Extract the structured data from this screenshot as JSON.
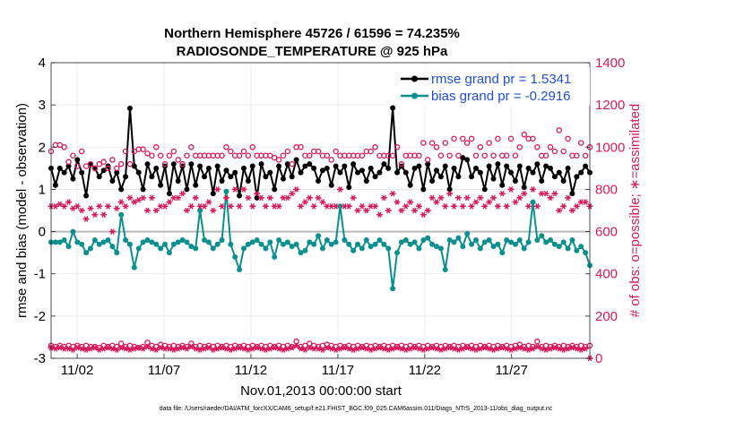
{
  "chart_data": {
    "type": "line",
    "title_line1": "Northern Hemisphere 45726 / 61596 = 74.235%",
    "title_line2": "RADIOSONDE_TEMPERATURE @ 925 hPa",
    "xlabel": "Nov.01,2013 00:00:00 start",
    "ylabel_left": "rmse and bias (model - observation)",
    "ylabel_right": "# of obs: o=possible; ∗=assimilated",
    "ylim_left": [
      -3,
      4
    ],
    "ylim_right": [
      0,
      1400
    ],
    "xlim": [
      0,
      31
    ],
    "x_ticks": [
      {
        "value": 1.5,
        "label": "11/02"
      },
      {
        "value": 6.5,
        "label": "11/07"
      },
      {
        "value": 11.5,
        "label": "11/12"
      },
      {
        "value": 16.5,
        "label": "11/17"
      },
      {
        "value": 21.5,
        "label": "11/22"
      },
      {
        "value": 26.5,
        "label": "11/27"
      }
    ],
    "left_ticks": [
      "4",
      "3",
      "2",
      "1",
      "0",
      "-1",
      "-2",
      "-3"
    ],
    "right_ticks": [
      "1400",
      "1200",
      "1000",
      "800",
      "600",
      "400",
      "200",
      "0"
    ],
    "legend": {
      "rmse_label": "rmse grand pr = 1.5341",
      "bias_label": "bias grand pr = -0.2916"
    },
    "footer": "data file: /Users/raeder/DAI/ATM_forcXX/CAM6_setup/f.e21.FHIST_BGC.f09_025.CAM6assim.011/Diags_NTrS_2013-11/obs_diag_output.nc",
    "colors": {
      "rmse": "#000000",
      "bias": "#0c8f8f",
      "counts": "#d6195a",
      "zero_line": "#b9b9b9",
      "title_text": "#000000",
      "legend_text": "#1f4fd6"
    },
    "n_bins": 124,
    "series": [
      {
        "name": "rmse",
        "axis": "left",
        "values": [
          1.5,
          1.1,
          1.5,
          1.4,
          1.55,
          1.25,
          1.7,
          1.4,
          0.85,
          1.6,
          1.5,
          1.3,
          1.45,
          1.55,
          1.2,
          1.4,
          1.0,
          1.3,
          2.92,
          1.55,
          1.4,
          1.0,
          1.6,
          1.3,
          1.5,
          1.1,
          1.55,
          0.9,
          1.6,
          1.2,
          1.55,
          1.0,
          1.6,
          1.1,
          1.55,
          1.3,
          1.5,
          0.9,
          1.55,
          1.2,
          1.45,
          1.3,
          1.4,
          0.85,
          1.5,
          1.2,
          1.55,
          0.8,
          1.6,
          1.3,
          1.4,
          1.0,
          1.55,
          1.25,
          1.6,
          1.3,
          1.7,
          1.4,
          1.55,
          1.6,
          1.5,
          1.2,
          1.45,
          1.5,
          1.1,
          1.55,
          1.4,
          1.55,
          1.05,
          1.6,
          1.4,
          1.45,
          1.2,
          1.5,
          1.3,
          1.4,
          1.6,
          1.5,
          2.93,
          1.4,
          1.55,
          1.4,
          1.1,
          1.5,
          1.55,
          1.0,
          1.6,
          1.2,
          1.45,
          1.3,
          1.55,
          1.0,
          1.5,
          1.3,
          1.75,
          1.7,
          1.3,
          1.5,
          1.4,
          1.0,
          1.55,
          1.25,
          1.6,
          1.1,
          1.55,
          1.4,
          1.2,
          1.55,
          1.05,
          1.5,
          1.4,
          1.6,
          1.2,
          1.55,
          1.5,
          1.3,
          1.4,
          1.2,
          1.5,
          0.9,
          1.3,
          1.4,
          1.55,
          1.4
        ]
      },
      {
        "name": "bias",
        "axis": "left",
        "values": [
          -0.25,
          -0.25,
          -0.25,
          -0.2,
          -0.35,
          0.0,
          -0.25,
          -0.3,
          -0.5,
          -0.4,
          -0.2,
          -0.3,
          -0.25,
          -0.2,
          -0.35,
          -0.5,
          0.4,
          -0.2,
          -0.3,
          -0.85,
          -0.4,
          -0.25,
          -0.2,
          -0.25,
          -0.3,
          -0.4,
          -0.3,
          -0.5,
          -0.3,
          -0.25,
          -0.2,
          -0.25,
          -0.35,
          -0.4,
          0.5,
          -0.2,
          -0.25,
          -0.4,
          -0.3,
          -0.2,
          0.95,
          -0.3,
          -0.6,
          -0.9,
          -0.4,
          -0.3,
          -0.25,
          -0.2,
          -0.3,
          -0.4,
          -0.25,
          -0.6,
          -0.2,
          -0.3,
          -0.25,
          -0.35,
          -0.3,
          -0.5,
          -0.45,
          -0.25,
          -0.3,
          -0.1,
          -0.4,
          -0.2,
          -0.3,
          -0.25,
          0.6,
          -0.2,
          -0.3,
          -0.45,
          -0.3,
          -0.4,
          -0.2,
          -0.35,
          -0.3,
          -0.2,
          -0.3,
          -0.4,
          -1.35,
          -0.5,
          -0.25,
          -0.2,
          -0.3,
          -0.25,
          -0.4,
          -0.2,
          -0.15,
          -0.3,
          -0.35,
          -0.4,
          -0.9,
          -0.2,
          -0.25,
          -0.15,
          -0.35,
          -0.05,
          -0.3,
          -0.2,
          -0.4,
          -0.25,
          -0.2,
          -0.35,
          -0.3,
          -0.5,
          -0.2,
          -0.25,
          -0.3,
          -0.2,
          -0.4,
          -0.25,
          0.7,
          -0.2,
          -0.1,
          -0.25,
          -0.2,
          -0.3,
          -0.35,
          -0.25,
          -0.4,
          -0.2,
          -0.45,
          -0.35,
          -0.5,
          -0.8
        ]
      },
      {
        "name": "obs possible",
        "axis": "right",
        "values": [
          980,
          1010,
          1010,
          1000,
          930,
          960,
          910,
          980,
          910,
          920,
          900,
          920,
          930,
          900,
          940,
          900,
          920,
          980,
          920,
          980,
          990,
          990,
          970,
          960,
          1000,
          960,
          920,
          960,
          980,
          940,
          920,
          960,
          1000,
          960,
          960,
          960,
          960,
          960,
          960,
          960,
          1000,
          980,
          960,
          960,
          980,
          960,
          1000,
          960,
          960,
          960,
          960,
          950,
          940,
          960,
          980,
          920,
          1000,
          1000,
          960,
          960,
          980,
          980,
          960,
          960,
          940,
          980,
          960,
          960,
          960,
          960,
          960,
          960,
          980,
          980,
          1000,
          960,
          960,
          960,
          960,
          1000,
          920,
          960,
          960,
          960,
          960,
          1020,
          940,
          1020,
          1000,
          960,
          1020,
          960,
          1040,
          960,
          1040,
          1020,
          1040,
          960,
          1000,
          960,
          1020,
          960,
          1040,
          960,
          960,
          1040,
          960,
          1000,
          1060,
          1040,
          1040,
          1000,
          960,
          960,
          1000,
          980,
          1080,
          980,
          1040,
          960,
          960,
          1020,
          960,
          1000
        ]
      },
      {
        "name": "obs assimilated",
        "axis": "right",
        "values": [
          720,
          720,
          730,
          720,
          740,
          710,
          720,
          700,
          660,
          710,
          680,
          720,
          680,
          720,
          600,
          710,
          740,
          720,
          760,
          740,
          750,
          760,
          700,
          760,
          700,
          720,
          720,
          740,
          760,
          760,
          780,
          700,
          720,
          760,
          720,
          720,
          740,
          700,
          800,
          720,
          760,
          720,
          800,
          720,
          800,
          760,
          720,
          780,
          760,
          720,
          760,
          720,
          720,
          760,
          760,
          780,
          800,
          720,
          740,
          760,
          720,
          760,
          740,
          720,
          720,
          720,
          800,
          720,
          720,
          760,
          700,
          720,
          700,
          720,
          720,
          680,
          760,
          700,
          780,
          740,
          700,
          720,
          740,
          700,
          720,
          680,
          700,
          760,
          740,
          760,
          720,
          780,
          720,
          760,
          720,
          760,
          720,
          740,
          760,
          720,
          740,
          760,
          720,
          780,
          720,
          800,
          740,
          760,
          780,
          720,
          800,
          720,
          780,
          780,
          760,
          780,
          700,
          720,
          760,
          700,
          720,
          740,
          740,
          720
        ]
      },
      {
        "name": "obs possible (low level)",
        "axis": "right",
        "values": [
          60,
          55,
          60,
          55,
          60,
          55,
          60,
          55,
          60,
          55,
          55,
          50,
          60,
          55,
          60,
          55,
          70,
          55,
          60,
          55,
          50,
          55,
          75,
          60,
          55,
          65,
          60,
          55,
          60,
          55,
          60,
          55,
          70,
          55,
          60,
          55,
          60,
          55,
          60,
          55,
          60,
          55,
          60,
          55,
          60,
          55,
          60,
          55,
          60,
          55,
          60,
          55,
          60,
          55,
          60,
          55,
          80,
          55,
          60,
          70,
          60,
          55,
          60,
          65,
          60,
          55,
          60,
          55,
          60,
          55,
          60,
          55,
          60,
          55,
          60,
          55,
          60,
          55,
          60,
          55,
          60,
          55,
          60,
          55,
          60,
          55,
          60,
          55,
          60,
          55,
          60,
          55,
          60,
          55,
          60,
          55,
          60,
          55,
          60,
          55,
          60,
          55,
          60,
          55,
          60,
          55,
          60,
          65,
          55,
          60,
          55,
          80,
          55,
          60,
          55,
          60,
          55,
          60,
          55,
          60,
          55,
          60,
          55,
          60
        ]
      },
      {
        "name": "obs assimilated (low level)",
        "axis": "right",
        "values": [
          50,
          45,
          50,
          45,
          45,
          40,
          50,
          45,
          40,
          45,
          50,
          40,
          45,
          50,
          45,
          40,
          50,
          45,
          40,
          45,
          50,
          45,
          55,
          45,
          40,
          50,
          45,
          45,
          40,
          45,
          50,
          45,
          55,
          45,
          40,
          45,
          50,
          40,
          45,
          50,
          45,
          40,
          45,
          50,
          45,
          40,
          45,
          50,
          45,
          40,
          45,
          50,
          45,
          40,
          45,
          50,
          60,
          45,
          40,
          50,
          45,
          45,
          40,
          50,
          45,
          40,
          45,
          50,
          45,
          40,
          45,
          50,
          45,
          40,
          45,
          50,
          45,
          40,
          45,
          50,
          45,
          40,
          45,
          50,
          45,
          40,
          45,
          50,
          45,
          40,
          45,
          50,
          45,
          40,
          45,
          50,
          45,
          40,
          45,
          50,
          45,
          40,
          45,
          50,
          45,
          40,
          45,
          50,
          45,
          40,
          45,
          55,
          45,
          40,
          45,
          50,
          45,
          40,
          45,
          50,
          45,
          40,
          45,
          0
        ]
      }
    ]
  }
}
